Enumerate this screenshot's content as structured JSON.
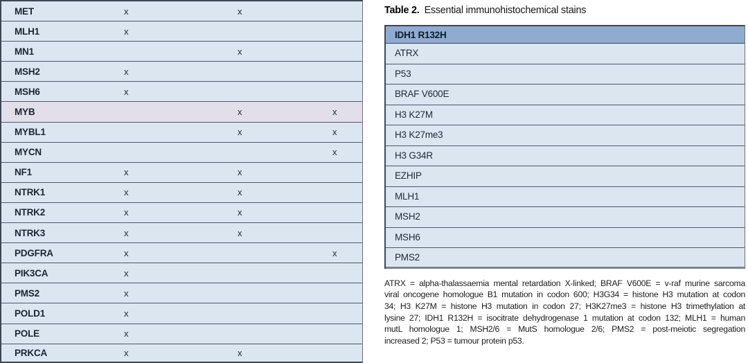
{
  "left_table": {
    "mark_char": "x",
    "rows": [
      {
        "gene": "MET",
        "marks": [
          2,
          3
        ]
      },
      {
        "gene": "MLH1",
        "marks": [
          2
        ]
      },
      {
        "gene": "MN1",
        "marks": [
          3
        ]
      },
      {
        "gene": "MSH2",
        "marks": [
          2
        ]
      },
      {
        "gene": "MSH6",
        "marks": [
          2
        ]
      },
      {
        "gene": "MYB",
        "marks": [
          3,
          4
        ],
        "bg": "#e2dfeb"
      },
      {
        "gene": "MYBL1",
        "marks": [
          3,
          4
        ]
      },
      {
        "gene": "MYCN",
        "marks": [
          4
        ]
      },
      {
        "gene": "NF1",
        "marks": [
          2,
          3
        ]
      },
      {
        "gene": "NTRK1",
        "marks": [
          2,
          3
        ]
      },
      {
        "gene": "NTRK2",
        "marks": [
          2,
          3
        ]
      },
      {
        "gene": "NTRK3",
        "marks": [
          2,
          3
        ]
      },
      {
        "gene": "PDGFRA",
        "marks": [
          2,
          4
        ]
      },
      {
        "gene": "PIK3CA",
        "marks": [
          2
        ]
      },
      {
        "gene": "PMS2",
        "marks": [
          2
        ]
      },
      {
        "gene": "POLD1",
        "marks": [
          2
        ]
      },
      {
        "gene": "POLE",
        "marks": [
          2
        ]
      },
      {
        "gene": "PRKCA",
        "marks": [
          2,
          3
        ]
      }
    ]
  },
  "table2": {
    "label": "Table 2.",
    "caption": "Essential immunohistochemical stains",
    "header": "IDH1 R132H",
    "rows": [
      "ATRX",
      "P53",
      "BRAF V600E",
      "H3 K27M",
      "H3 K27me3",
      "H3 G34R",
      "EZHIP",
      "MLH1",
      "MSH2",
      "MSH6",
      "PMS2"
    ],
    "footnote_lines": [
      "ATRX = alpha-thalassaemia mental retardation X-linked; BRAF V600E = v-raf murine sarcoma",
      "viral oncogene homologue B1 mutation in codon 600; H3G34 = histone H3 mutation at codon",
      "34; H3 K27M = histone H3 mutation in codon 27; H3K27me3 = histone H3 trimethylation at",
      "lysine 27; IDH1 R132H = isocitrate dehydrogenase 1 mutation at codon 132; MLH1 = human",
      "mutL homologue 1; MSH2/6 = MutS homologue 2/6; PMS2 = post-meiotic segregation",
      "increased 2; P53 = tumour protein p53."
    ]
  },
  "colors": {
    "row_bg": "#dce6f1",
    "myb_row_bg": "#e2dfeb",
    "row_separator": "#4d5969",
    "outer_border": "#3c4654",
    "header_bg": "#8fabd0",
    "header_text": "#0d1b2c",
    "gene_text": "#1c2531",
    "body_text": "#212b38",
    "footnote_text": "#1b1b1b",
    "bottom_border": "#79838f"
  }
}
